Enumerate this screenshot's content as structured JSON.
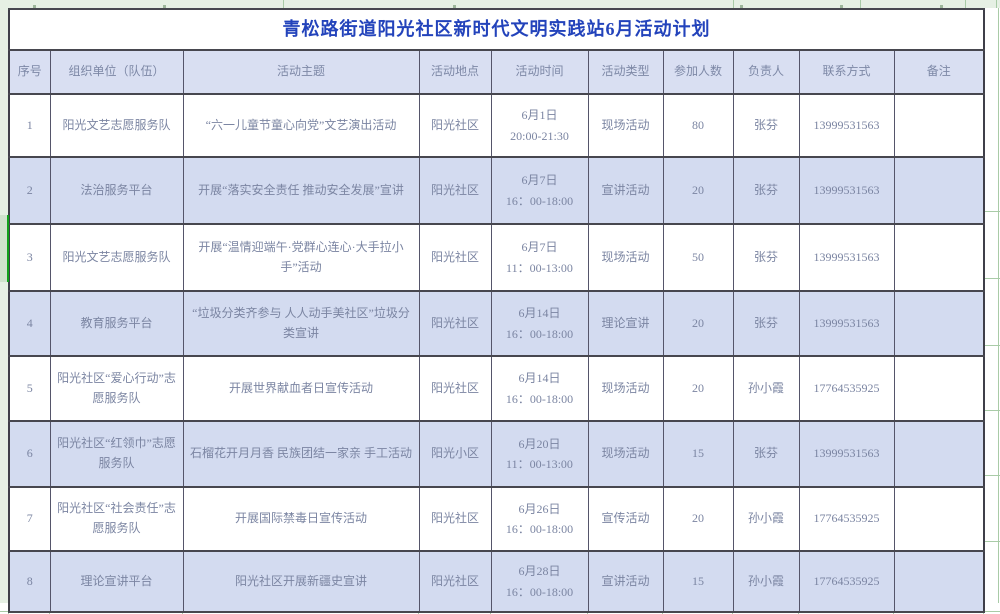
{
  "title": "青松路街道阳光社区新时代文明实践站6月活动计划",
  "columns": [
    "序号",
    "组织单位（队伍）",
    "活动主题",
    "活动地点",
    "活动时间",
    "活动类型",
    "参加人数",
    "负责人",
    "联系方式",
    "备注"
  ],
  "rows": [
    {
      "seq": "1",
      "org": "阳光文艺志愿服务队",
      "theme": "“六一儿童节童心向党”文艺演出活动",
      "place": "阳光社区",
      "date": "6月1日",
      "time": "20:00-21:30",
      "type": "现场活动",
      "count": "80",
      "leader": "张芬",
      "phone": "13999531563",
      "note": ""
    },
    {
      "seq": "2",
      "org": "法治服务平台",
      "theme": "开展“落实安全责任 推动安全发展”宣讲",
      "place": "阳光社区",
      "date": "6月7日",
      "time": "16：00-18:00",
      "type": "宣讲活动",
      "count": "20",
      "leader": "张芬",
      "phone": "13999531563",
      "note": ""
    },
    {
      "seq": "3",
      "org": "阳光文艺志愿服务队",
      "theme": "开展“温情迎端午·党群心连心·大手拉小手”活动",
      "place": "阳光社区",
      "date": "6月7日",
      "time": "11：00-13:00",
      "type": "现场活动",
      "count": "50",
      "leader": "张芬",
      "phone": "13999531563",
      "note": ""
    },
    {
      "seq": "4",
      "org": "教育服务平台",
      "theme": "“垃圾分类齐参与 人人动手美社区”垃圾分类宣讲",
      "place": "阳光社区",
      "date": "6月14日",
      "time": "16：00-18:00",
      "type": "理论宣讲",
      "count": "20",
      "leader": "张芬",
      "phone": "13999531563",
      "note": ""
    },
    {
      "seq": "5",
      "org": "阳光社区“爱心行动”志愿服务队",
      "theme": "开展世界献血者日宣传活动",
      "place": "阳光社区",
      "date": "6月14日",
      "time": "16：00-18:00",
      "type": "现场活动",
      "count": "20",
      "leader": "孙小霞",
      "phone": "17764535925",
      "note": ""
    },
    {
      "seq": "6",
      "org": "阳光社区“红领巾”志愿服务队",
      "theme": "石榴花开月月香 民族团结一家亲 手工活动",
      "place": "阳光小区",
      "date": "6月20日",
      "time": "11：00-13:00",
      "type": "现场活动",
      "count": "15",
      "leader": "张芬",
      "phone": "13999531563",
      "note": ""
    },
    {
      "seq": "7",
      "org": "阳光社区“社会责任”志愿服务队",
      "theme": "开展国际禁毒日宣传活动",
      "place": "阳光社区",
      "date": "6月26日",
      "time": "16：00-18:00",
      "type": "宣传活动",
      "count": "20",
      "leader": "孙小霞",
      "phone": "17764535925",
      "note": ""
    },
    {
      "seq": "8",
      "org": "理论宣讲平台",
      "theme": "阳光社区开展新疆史宣讲",
      "place": "阳光社区",
      "date": "6月28日",
      "time": "16：00-18:00",
      "type": "宣讲活动",
      "count": "15",
      "leader": "孙小霞",
      "phone": "17764535925",
      "note": ""
    }
  ],
  "colors": {
    "title_text": "#2343bb",
    "header_fill": "#d9dff2",
    "banded_row_fill": "#d3dbf0",
    "cell_text": "#7b85a2",
    "surround_green": "#e6f0e4",
    "grid_green": "#a9cba7",
    "selection_green": "#11a01c"
  }
}
